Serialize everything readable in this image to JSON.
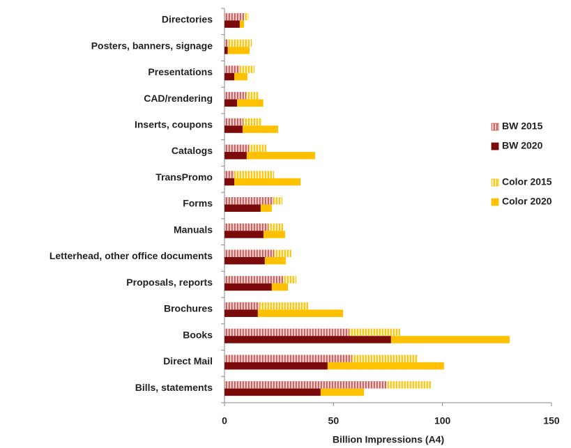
{
  "chart_data": {
    "type": "bar",
    "orientation": "horizontal",
    "x_label": "Billion Impressions (A4)",
    "categories": [
      "Directories",
      "Posters, banners, signage",
      "Presentations",
      "CAD/rendering",
      "Inserts, coupons",
      "Catalogs",
      "TransPromo",
      "Forms",
      "Manuals",
      "Letterhead, other office documents",
      "Proposals, reports",
      "Brochures",
      "Books",
      "Direct Mail",
      "Bills, statements"
    ],
    "series": [
      {
        "name": "BW 2015",
        "color": "#c0504d",
        "hatched": true,
        "values": [
          9,
          1.5,
          7,
          10,
          8.6,
          11.2,
          4.5,
          22.4,
          20.1,
          22.7,
          26.9,
          16,
          57.2,
          58.5,
          74.2
        ]
      },
      {
        "name": "BW 2020",
        "color": "#7b0a0a",
        "hatched": false,
        "values": [
          7,
          1.5,
          4.5,
          5.8,
          8.3,
          10.2,
          4.5,
          16.6,
          17.9,
          18.5,
          21.7,
          15.3,
          76.4,
          47.3,
          44.1
        ]
      },
      {
        "name": "Color 2015",
        "color": "#f2c200",
        "hatched": true,
        "values": [
          2,
          11,
          6.7,
          5.7,
          8.4,
          8,
          18.2,
          4.1,
          6.8,
          8,
          6,
          22.4,
          23.4,
          30.1,
          20.5
        ]
      },
      {
        "name": "Color 2020",
        "color": "#ffc000",
        "hatched": false,
        "values": [
          2,
          10,
          6,
          12,
          16.3,
          31.4,
          30.4,
          5.1,
          9.9,
          9.6,
          7.4,
          39.1,
          54.4,
          53.4,
          19.9
        ]
      }
    ],
    "xlim": [
      0,
      150
    ],
    "xticks": [
      0,
      50,
      100,
      150
    ],
    "grid": false
  }
}
